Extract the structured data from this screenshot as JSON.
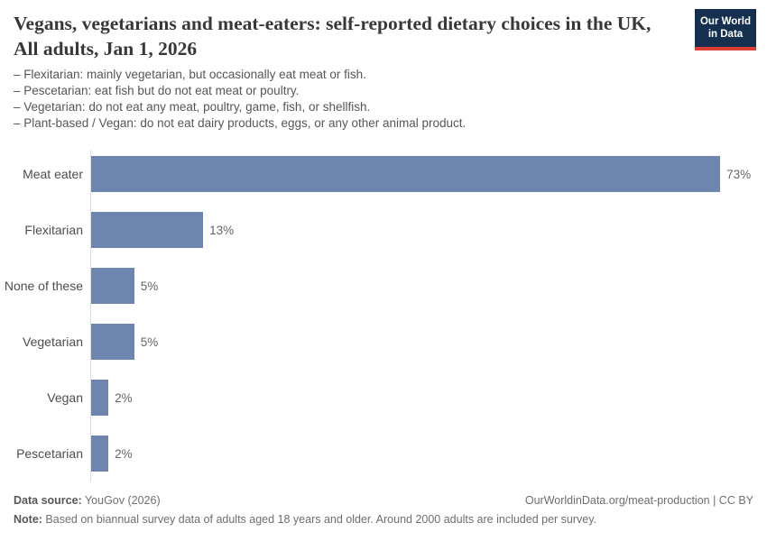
{
  "header": {
    "title": "Vegans, vegetarians and meat-eaters: self-reported dietary choices in the UK, All adults, Jan 1, 2026",
    "logo": {
      "line1": "Our World",
      "line2": "in Data"
    },
    "subtitle_lines": [
      "– Flexitarian: mainly vegetarian, but occasionally eat meat or fish.",
      "– Pescetarian: eat fish but do not eat meat or poultry.",
      "– Vegetarian: do not eat any meat, poultry, game, fish, or shellfish.",
      "– Plant-based / Vegan: do not eat dairy products, eggs, or any other animal product."
    ]
  },
  "chart_data": {
    "type": "bar",
    "orientation": "horizontal",
    "title": "Vegans, vegetarians and meat-eaters: self-reported dietary choices in the UK, All adults, Jan 1, 2026",
    "categories": [
      "Meat eater",
      "Flexitarian",
      "None of these",
      "Vegetarian",
      "Vegan",
      "Pescetarian"
    ],
    "values": [
      73,
      13,
      5,
      5,
      2,
      2
    ],
    "value_labels": [
      "73%",
      "13%",
      "5%",
      "5%",
      "2%",
      "2%"
    ],
    "unit": "%",
    "xlim": [
      0,
      78
    ],
    "grid": false,
    "legend": "none",
    "bar_color": "#6e86ad"
  },
  "footer": {
    "source_label": "Data source:",
    "source_value": " YouGov (2026)",
    "link": "OurWorldinData.org/meat-production | CC BY",
    "note_label": "Note:",
    "note_value": " Based on biannual survey data of adults aged 18 years and older. Around 2000 adults are included per survey."
  },
  "colors": {
    "bar": "#6e86ad",
    "logo_background": "#15304f",
    "logo_stripe": "#d93d33",
    "axis_line": "#dcdcdc",
    "title_text": "#383838",
    "body_text": "#565656"
  }
}
